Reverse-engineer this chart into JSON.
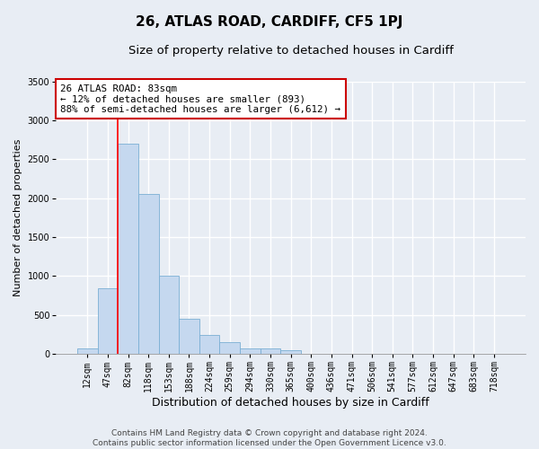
{
  "title": "26, ATLAS ROAD, CARDIFF, CF5 1PJ",
  "subtitle": "Size of property relative to detached houses in Cardiff",
  "xlabel": "Distribution of detached houses by size in Cardiff",
  "ylabel": "Number of detached properties",
  "categories": [
    "12sqm",
    "47sqm",
    "82sqm",
    "118sqm",
    "153sqm",
    "188sqm",
    "224sqm",
    "259sqm",
    "294sqm",
    "330sqm",
    "365sqm",
    "400sqm",
    "436sqm",
    "471sqm",
    "506sqm",
    "541sqm",
    "577sqm",
    "612sqm",
    "647sqm",
    "683sqm",
    "718sqm"
  ],
  "values": [
    70,
    840,
    2700,
    2060,
    1000,
    450,
    240,
    155,
    70,
    70,
    50,
    0,
    0,
    0,
    0,
    0,
    0,
    0,
    0,
    0,
    0
  ],
  "bar_color": "#c5d8ef",
  "bar_edge_color": "#7aafd4",
  "background_color": "#e8edf4",
  "grid_color": "#ffffff",
  "red_line_index": 2,
  "annotation_line1": "26 ATLAS ROAD: 83sqm",
  "annotation_line2": "← 12% of detached houses are smaller (893)",
  "annotation_line3": "88% of semi-detached houses are larger (6,612) →",
  "annotation_box_color": "#ffffff",
  "annotation_box_edge_color": "#cc0000",
  "ylim": [
    0,
    3500
  ],
  "yticks": [
    0,
    500,
    1000,
    1500,
    2000,
    2500,
    3000,
    3500
  ],
  "footer1": "Contains HM Land Registry data © Crown copyright and database right 2024.",
  "footer2": "Contains public sector information licensed under the Open Government Licence v3.0.",
  "title_fontsize": 11,
  "subtitle_fontsize": 9.5,
  "xlabel_fontsize": 9,
  "ylabel_fontsize": 8,
  "tick_fontsize": 7,
  "annotation_fontsize": 7.8,
  "footer_fontsize": 6.5
}
